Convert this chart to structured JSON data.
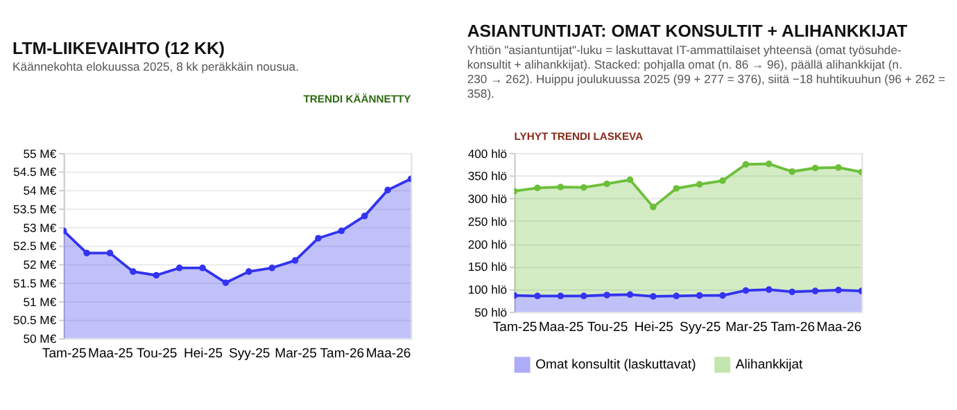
{
  "chart_data": [
    {
      "type": "area",
      "title": "LTM-LIIKEVAIHTO (12 KK)",
      "subtitle": "Käännekohta elokuussa 2025, 8 kk peräkkäin nousua.",
      "annotations": [
        "TRENDI KÄÄNNETTY"
      ],
      "categories": [
        "Tam-25",
        null,
        "Maa-25",
        null,
        "Tou-25",
        null,
        "Hei-25",
        null,
        "Syy-25",
        null,
        "Mar-25",
        null,
        "Tam-26",
        null,
        "Maa-26",
        null
      ],
      "series": [
        {
          "color": "#3333f0",
          "values": [
            52.9,
            52.3,
            52.3,
            51.8,
            51.7,
            51.9,
            51.9,
            51.5,
            51.8,
            51.9,
            52.1,
            52.7,
            52.9,
            53.3,
            54.0,
            54.3
          ]
        }
      ],
      "ylim": [
        50,
        55
      ],
      "yticks": [
        {
          "value": 50,
          "label": "50 M€"
        },
        {
          "value": 50.5,
          "label": "50.5 M€"
        },
        {
          "value": 51,
          "label": "51 M€"
        },
        {
          "value": 51.5,
          "label": "51.5 M€"
        },
        {
          "value": 52,
          "label": "52 M€"
        },
        {
          "value": 52.5,
          "label": "52.5 M€"
        },
        {
          "value": 53,
          "label": "53 M€"
        },
        {
          "value": 53.5,
          "label": "53.5 M€"
        },
        {
          "value": 54,
          "label": "54 M€"
        },
        {
          "value": 54.5,
          "label": "54.5 M€"
        },
        {
          "value": 55,
          "label": "55 M€"
        }
      ],
      "grid": "y",
      "marker": "circle",
      "legend": false
    },
    {
      "type": "area",
      "title": "ASIANTUNTIJAT: OMAT KONSULTIT + ALIHANKKIJAT",
      "subtitle": "Yhtiön \"asiantuntijat\"-luku = laskuttavat IT-ammattilaiset yhteensä (omat työsuhde-konsultit + alihankkijat). Stacked: pohjalla omat (n. 86 → 96), päällä alihankkijat (n. 230 → 262). Huippu joulukuussa 2025 (99 + 277 = 376), siitä −18 huhtikuuhun (96 + 262 = 358).",
      "annotations": [
        "LYHYT TRENDI LASKEVA"
      ],
      "categories": [
        "Tam-25",
        null,
        "Maa-25",
        null,
        "Tou-25",
        null,
        "Hei-25",
        null,
        "Syy-25",
        null,
        "Mar-25",
        null,
        "Tam-26",
        null,
        "Maa-26",
        null
      ],
      "stacked": true,
      "series": [
        {
          "name": "Omat konsultit (laskuttavat)",
          "color": "#3333f0",
          "values": [
            86,
            85,
            85,
            85,
            87,
            88,
            84,
            85,
            86,
            86,
            97,
            99,
            94,
            96,
            98,
            96
          ]
        },
        {
          "name": "Alihankkijat",
          "color": "#6cbf3a",
          "values": [
            230,
            238,
            240,
            239,
            245,
            253,
            197,
            237,
            245,
            253,
            278,
            277,
            265,
            271,
            270,
            262
          ]
        }
      ],
      "ylim": [
        50,
        400
      ],
      "yticks": [
        {
          "value": 50,
          "label": "50 hlö"
        },
        {
          "value": 100,
          "label": "100 hlö"
        },
        {
          "value": 150,
          "label": "150 hlö"
        },
        {
          "value": 200,
          "label": "200 hlö"
        },
        {
          "value": 250,
          "label": "250 hlö"
        },
        {
          "value": 300,
          "label": "300 hlö"
        },
        {
          "value": 350,
          "label": "350 hlö"
        },
        {
          "value": 400,
          "label": "400 hlö"
        }
      ],
      "grid": "y",
      "marker": "circle",
      "legend": "bottom"
    }
  ]
}
